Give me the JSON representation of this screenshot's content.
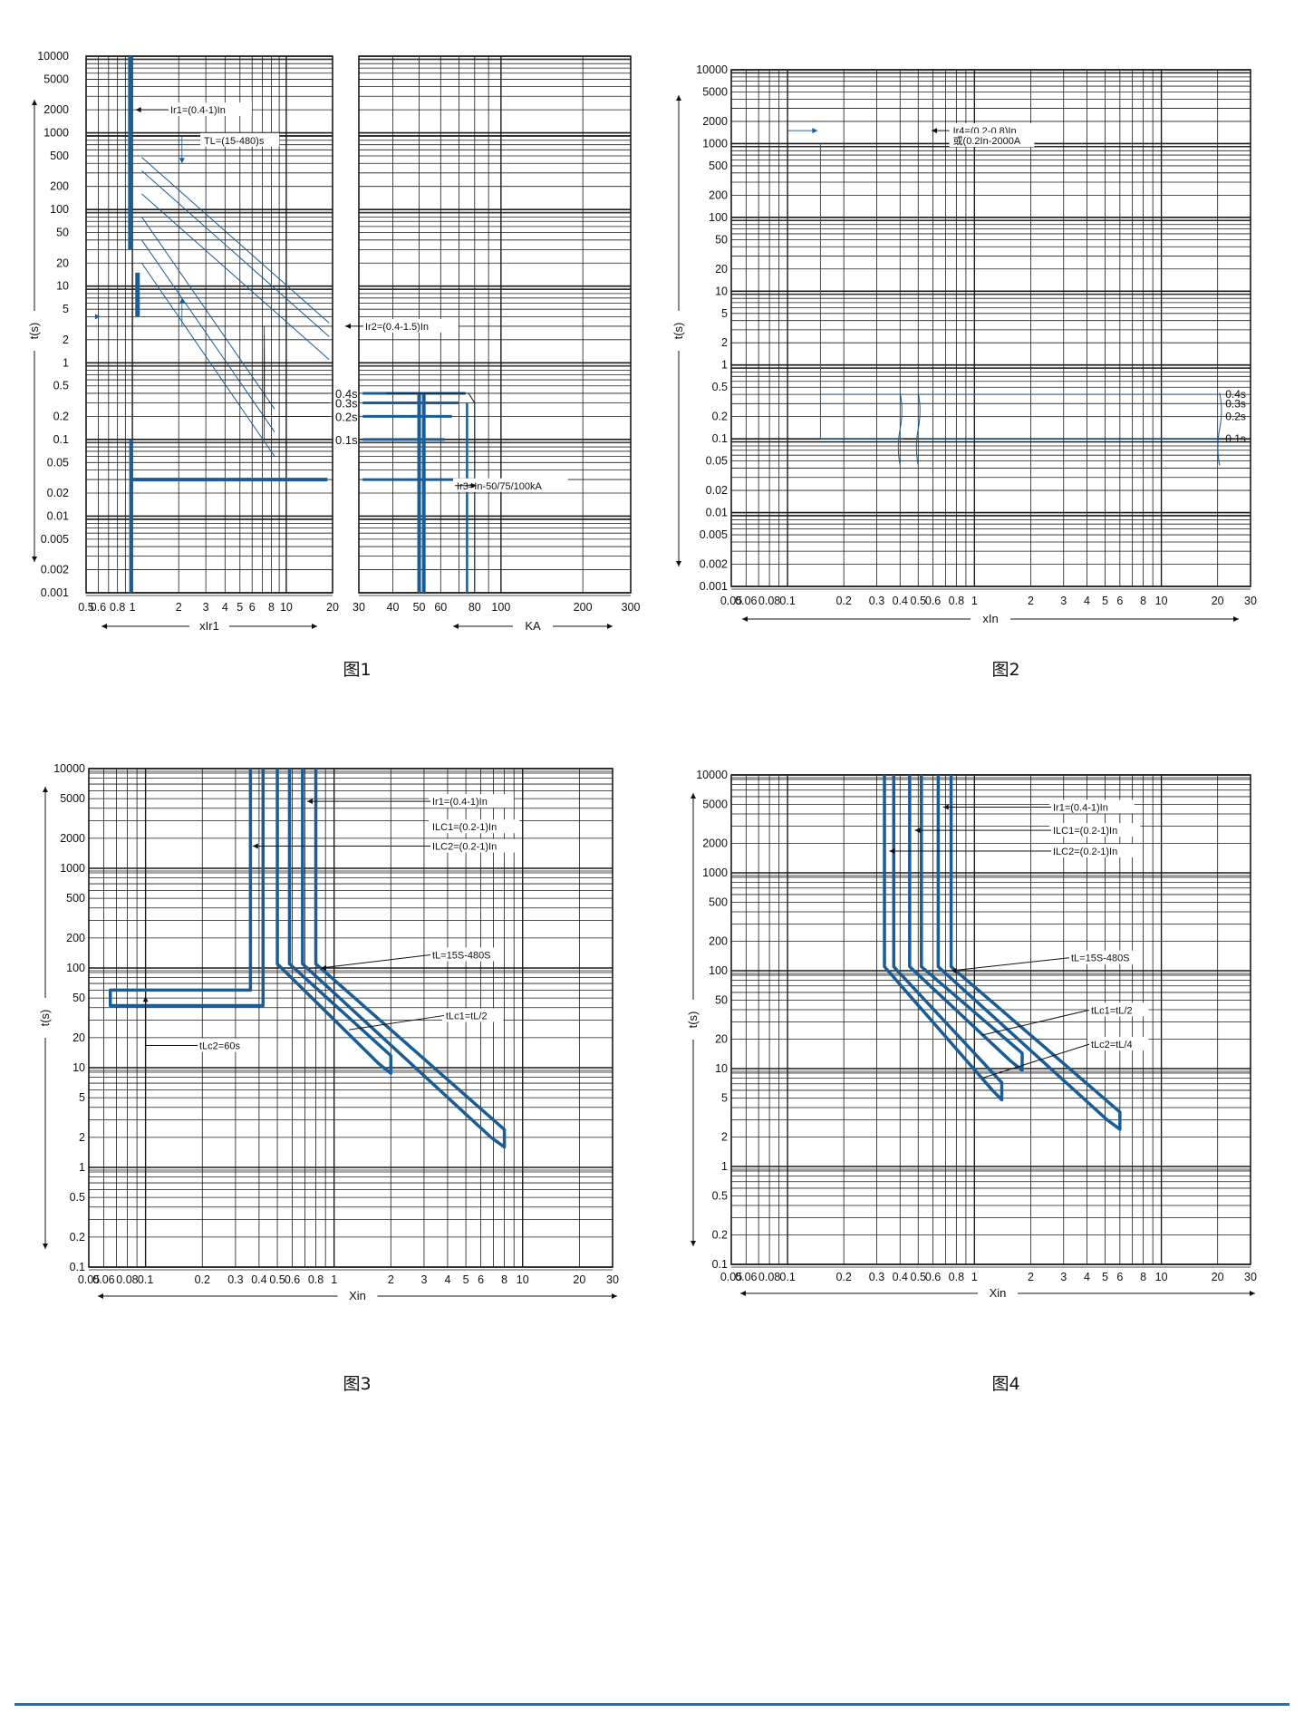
{
  "colors": {
    "curve": "#1a5c96",
    "grid": "#1a1a1a",
    "text": "#111111",
    "background": "#ffffff",
    "footer_rule": "#2a6fa6"
  },
  "figures": [
    {
      "id": "fig1",
      "caption": "图1",
      "chart_data": {
        "type": "line",
        "title": "",
        "y_axis": {
          "label": "t(s)",
          "scale": "log",
          "range": [
            0.001,
            10000
          ],
          "ticks": [
            "10000",
            "5000",
            "2000",
            "1000",
            "500",
            "200",
            "100",
            "50",
            "20",
            "10",
            "5",
            "2",
            "1",
            "0.5",
            "0.2",
            "0.1",
            "0.05",
            "0.02",
            "0.01",
            "0.005",
            "0.002",
            "0.001"
          ]
        },
        "x_axis_left": {
          "label": "xIr1",
          "scale": "log",
          "range": [
            0.5,
            20
          ],
          "ticks": [
            "0.5",
            "0.6",
            "0.8",
            "1",
            "2",
            "3",
            "4",
            "5",
            "6",
            "8",
            "10",
            "20"
          ]
        },
        "x_axis_right": {
          "label": "KA",
          "scale": "log",
          "range": [
            30,
            300
          ],
          "ticks": [
            "30",
            "40",
            "50",
            "60",
            "80",
            "100",
            "200",
            "300"
          ]
        },
        "annotations": [
          "Ir1=(0.4-1)In",
          "TL=(15-480)s",
          "Ir2=(0.4-1.5)In",
          "Ir3=In-50/75/100kA"
        ],
        "delay_labels": [
          "0.4s",
          "0.3s",
          "0.2s",
          "0.1s"
        ],
        "long_delay_lines": [
          {
            "x": [
              1,
              20
            ],
            "y": [
              600,
              3
            ]
          },
          {
            "x": [
              1,
              20
            ],
            "y": [
              400,
              2
            ]
          },
          {
            "x": [
              1,
              20
            ],
            "y": [
              200,
              1
            ]
          },
          {
            "x": [
              1,
              20
            ],
            "y": [
              100,
              0.5
            ]
          },
          {
            "x": [
              1,
              20
            ],
            "y": [
              50,
              0.25
            ]
          },
          {
            "x": [
              1,
              20
            ],
            "y": [
              25,
              0.12
            ]
          }
        ],
        "short_delay_times": [
          0.4,
          0.3,
          0.2,
          0.1
        ],
        "instantaneous_time": 0.03
      }
    },
    {
      "id": "fig2",
      "caption": "图2",
      "chart_data": {
        "type": "line",
        "title": "",
        "y_axis": {
          "label": "t(s)",
          "scale": "log",
          "range": [
            0.001,
            10000
          ],
          "ticks": [
            "10000",
            "5000",
            "2000",
            "1000",
            "500",
            "200",
            "100",
            "50",
            "20",
            "10",
            "5",
            "2",
            "1",
            "0.5",
            "0.2",
            "0.1",
            "0.05",
            "0.02",
            "0.01",
            "0.005",
            "0.002",
            "0.001"
          ]
        },
        "x_axis": {
          "label": "xIn",
          "scale": "log",
          "range": [
            0.05,
            30
          ],
          "ticks": [
            "0.05",
            "0.06",
            "0.08",
            "0.1",
            "0.2",
            "0.3",
            "0.4",
            "0.5",
            "0.6",
            "0.8",
            "1",
            "2",
            "3",
            "4",
            "5",
            "6",
            "8",
            "10",
            "20",
            "30"
          ]
        },
        "annotations": [
          "Ir4=(0.2-0.8)In",
          "或(0.2In-2000A"
        ],
        "delay_labels": [
          "0.4s",
          "0.3s",
          "0.2s",
          "0.1s"
        ],
        "pickup_range": [
          0.15,
          0.8
        ],
        "delay_times": [
          0.4,
          0.3,
          0.2,
          0.1
        ]
      }
    },
    {
      "id": "fig3",
      "caption": "图3",
      "chart_data": {
        "type": "line",
        "title": "",
        "y_axis": {
          "label": "t(s)",
          "scale": "log",
          "range": [
            0.1,
            10000
          ],
          "ticks": [
            "10000",
            "5000",
            "2000",
            "1000",
            "500",
            "200",
            "100",
            "50",
            "20",
            "10",
            "5",
            "2",
            "1",
            "0.5",
            "0.2",
            "0.1"
          ]
        },
        "x_axis": {
          "label": "Xin",
          "scale": "log",
          "range": [
            0.05,
            30
          ],
          "ticks": [
            "0.05",
            "0.06",
            "0.08",
            "0.1",
            "0.2",
            "0.3",
            "0.4",
            "0.5",
            "0.6",
            "0.8",
            "1",
            "2",
            "3",
            "4",
            "5",
            "6",
            "8",
            "10",
            "20",
            "30"
          ]
        },
        "annotations": [
          "Ir1=(0.4-1)In",
          "ILC1=(0.2-1)In",
          "ILC2=(0.2-1)In",
          "tL=15S-480S",
          "tLc1=tL/2",
          "tLc2=60s"
        ],
        "bands": [
          {
            "name": "ILC2",
            "x_vertical": [
              0.36,
              0.42
            ],
            "y_horizontal": [
              60,
              42
            ],
            "x_start": 0.065
          },
          {
            "name": "ILC1",
            "x_vertical": [
              0.5,
              0.58
            ],
            "bend_y": 110,
            "end": {
              "x": 2.0,
              "y": 11
            }
          },
          {
            "name": "Ir1",
            "x_vertical": [
              0.68,
              0.8
            ],
            "bend_y": 110,
            "end": {
              "x": 8.0,
              "y": 2
            }
          }
        ]
      }
    },
    {
      "id": "fig4",
      "caption": "图4",
      "chart_data": {
        "type": "line",
        "title": "",
        "y_axis": {
          "label": "t(s)",
          "scale": "log",
          "range": [
            0.1,
            10000
          ],
          "ticks": [
            "10000",
            "5000",
            "2000",
            "1000",
            "500",
            "200",
            "100",
            "50",
            "20",
            "10",
            "5",
            "2",
            "1",
            "0.5",
            "0.2",
            "0.1"
          ]
        },
        "x_axis": {
          "label": "Xin",
          "scale": "log",
          "range": [
            0.05,
            30
          ],
          "ticks": [
            "0.05",
            "0.06",
            "0.08",
            "0.1",
            "0.2",
            "0.3",
            "0.4",
            "0.5",
            "0.6",
            "0.8",
            "1",
            "2",
            "3",
            "4",
            "5",
            "6",
            "8",
            "10",
            "20",
            "30"
          ]
        },
        "annotations": [
          "Ir1=(0.4-1)In",
          "ILC1=(0.2-1)In",
          "ILC2=(0.2-1)In",
          "tL=15S-480S",
          "tLc1=tL/2",
          "tLc2=tL/4"
        ],
        "bands": [
          {
            "name": "ILC2",
            "x_vertical": [
              0.33,
              0.37
            ],
            "bend_y": 110,
            "end": {
              "x": 1.4,
              "y": 6
            }
          },
          {
            "name": "ILC1",
            "x_vertical": [
              0.45,
              0.52
            ],
            "bend_y": 110,
            "end": {
              "x": 1.8,
              "y": 12
            }
          },
          {
            "name": "Ir1",
            "x_vertical": [
              0.64,
              0.75
            ],
            "bend_y": 110,
            "end": {
              "x": 6.0,
              "y": 3
            }
          }
        ]
      }
    }
  ]
}
